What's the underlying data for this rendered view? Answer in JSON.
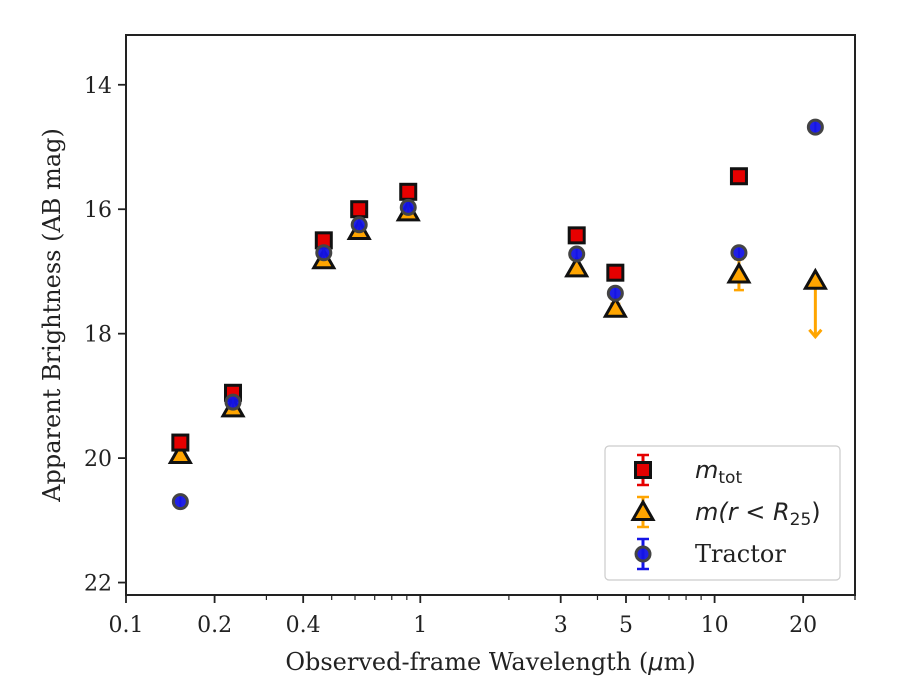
{
  "chart_data": {
    "type": "scatter",
    "xscale": "log",
    "yscale": "linear",
    "y_inverted": true,
    "xlim": [
      0.1,
      30
    ],
    "ylim": [
      22.2,
      13.2
    ],
    "xlabel_main": "Observed-frame Wavelength (",
    "xlabel_unit_mu": "μ",
    "xlabel_unit_rest": "m)",
    "ylabel": "Apparent Brightness (AB mag)",
    "x_ticks": [
      {
        "value": 0.1,
        "label": "0.1"
      },
      {
        "value": 0.2,
        "label": "0.2"
      },
      {
        "value": 0.4,
        "label": "0.4"
      },
      {
        "value": 1,
        "label": "1"
      },
      {
        "value": 3,
        "label": "3"
      },
      {
        "value": 5,
        "label": "5"
      },
      {
        "value": 10,
        "label": "10"
      },
      {
        "value": 20,
        "label": "20"
      }
    ],
    "y_ticks": [
      {
        "value": 14,
        "label": "14"
      },
      {
        "value": 16,
        "label": "16"
      },
      {
        "value": 18,
        "label": "18"
      },
      {
        "value": 20,
        "label": "20"
      },
      {
        "value": 22,
        "label": "22"
      }
    ],
    "grid": false,
    "legend_position": "lower-right",
    "series": [
      {
        "name": "m_tot",
        "marker": "square",
        "color": "#e60000",
        "edge": "#111111",
        "points": [
          {
            "x": 0.153,
            "y": 19.75
          },
          {
            "x": 0.231,
            "y": 18.95
          },
          {
            "x": 0.47,
            "y": 16.5
          },
          {
            "x": 0.62,
            "y": 16.0
          },
          {
            "x": 0.91,
            "y": 15.72
          },
          {
            "x": 3.4,
            "y": 16.42
          },
          {
            "x": 4.6,
            "y": 17.02
          },
          {
            "x": 12.1,
            "y": 15.47
          }
        ]
      },
      {
        "name": "m(r<R25)",
        "marker": "triangle",
        "color": "#ffa500",
        "edge": "#111111",
        "points": [
          {
            "x": 0.153,
            "y": 19.95
          },
          {
            "x": 0.231,
            "y": 19.2
          },
          {
            "x": 0.47,
            "y": 16.82
          },
          {
            "x": 0.62,
            "y": 16.35
          },
          {
            "x": 0.91,
            "y": 16.05
          },
          {
            "x": 3.4,
            "y": 16.95
          },
          {
            "x": 4.6,
            "y": 17.6,
            "err": 0.08
          },
          {
            "x": 12.1,
            "y": 17.05,
            "err": 0.25
          },
          {
            "x": 22.0,
            "y": 17.15,
            "upper_limit": true,
            "limit_to": 18.05
          }
        ]
      },
      {
        "name": "Tractor",
        "marker": "circle",
        "color": "#1414e6",
        "edge": "#444444",
        "points": [
          {
            "x": 0.153,
            "y": 20.7
          },
          {
            "x": 0.231,
            "y": 19.1
          },
          {
            "x": 0.47,
            "y": 16.7
          },
          {
            "x": 0.62,
            "y": 16.25
          },
          {
            "x": 0.91,
            "y": 15.97
          },
          {
            "x": 3.4,
            "y": 16.72
          },
          {
            "x": 4.6,
            "y": 17.35
          },
          {
            "x": 12.1,
            "y": 16.7
          },
          {
            "x": 22.0,
            "y": 14.68
          }
        ]
      }
    ],
    "legend": [
      {
        "marker": "square",
        "color": "#e60000",
        "err_color": "#e60000",
        "math_base": "m",
        "math_sub": "tot",
        "text": ""
      },
      {
        "marker": "triangle",
        "color": "#ffa500",
        "err_color": "#ffa500",
        "math_base": "m(r < R",
        "math_sub": "25",
        "math_tail": ")",
        "text": ""
      },
      {
        "marker": "circle",
        "color": "#1414e6",
        "err_color": "#1414e6",
        "text": "Tractor"
      }
    ]
  }
}
